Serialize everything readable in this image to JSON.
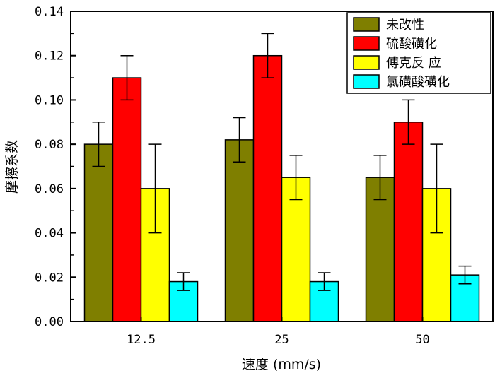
{
  "chart_data": {
    "type": "bar",
    "categories": [
      "12.5",
      "25",
      "50"
    ],
    "series": [
      {
        "name": "未改性",
        "values": [
          0.08,
          0.082,
          0.065
        ],
        "errors": [
          0.01,
          0.01,
          0.01
        ],
        "color": "#7f7f00"
      },
      {
        "name": "硫酸磺化",
        "values": [
          0.11,
          0.12,
          0.09
        ],
        "errors": [
          0.01,
          0.01,
          0.01
        ],
        "color": "#ff0000"
      },
      {
        "name": "傅克反 应",
        "values": [
          0.06,
          0.065,
          0.06
        ],
        "errors": [
          0.02,
          0.01,
          0.02
        ],
        "color": "#ffff00"
      },
      {
        "name": "氯磺酸磺化",
        "values": [
          0.018,
          0.018,
          0.021
        ],
        "errors": [
          0.004,
          0.004,
          0.004
        ],
        "color": "#00ffff"
      }
    ],
    "xlabel": "速度 (mm/s)",
    "ylabel": "摩擦系数",
    "ylim": [
      0,
      0.14
    ],
    "yticks": [
      "0.00",
      "0.02",
      "0.04",
      "0.06",
      "0.08",
      "0.10",
      "0.12",
      "0.14"
    ],
    "grid": false,
    "legend_position": "top-right"
  }
}
